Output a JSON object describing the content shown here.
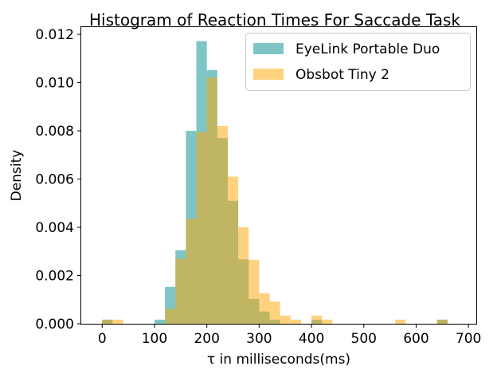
{
  "chart_data": {
    "type": "histogram",
    "title": "Histogram of Reaction Times For Saccade Task",
    "xlabel": "τ in milliseconds(ms)",
    "ylabel": "Density",
    "xlim": [
      -40,
      715
    ],
    "ylim": [
      0,
      0.0123
    ],
    "xticks": [
      "0",
      "100",
      "200",
      "300",
      "400",
      "500",
      "600",
      "700"
    ],
    "yticks": [
      "0.000",
      "0.002",
      "0.004",
      "0.006",
      "0.008",
      "0.010",
      "0.012"
    ],
    "legend_position": "top-right",
    "grid": false,
    "series": [
      {
        "name": "EyeLink Portable Duo",
        "color": "#008b8b",
        "opacity": 0.5,
        "bins": [
          {
            "x0": 0,
            "x1": 20,
            "density": 0.00017
          },
          {
            "x0": 100,
            "x1": 120,
            "density": 0.00017
          },
          {
            "x0": 120,
            "x1": 140,
            "density": 0.00153
          },
          {
            "x0": 140,
            "x1": 160,
            "density": 0.00305
          },
          {
            "x0": 160,
            "x1": 180,
            "density": 0.008
          },
          {
            "x0": 180,
            "x1": 200,
            "density": 0.01172
          },
          {
            "x0": 200,
            "x1": 220,
            "density": 0.01052
          },
          {
            "x0": 220,
            "x1": 240,
            "density": 0.0077
          },
          {
            "x0": 240,
            "x1": 260,
            "density": 0.0051
          },
          {
            "x0": 260,
            "x1": 280,
            "density": 0.00267
          },
          {
            "x0": 280,
            "x1": 300,
            "density": 0.00103
          },
          {
            "x0": 300,
            "x1": 320,
            "density": 0.00051
          },
          {
            "x0": 320,
            "x1": 340,
            "density": 0.00017
          },
          {
            "x0": 400,
            "x1": 420,
            "density": 0.00017
          },
          {
            "x0": 640,
            "x1": 660,
            "density": 0.00017
          }
        ]
      },
      {
        "name": "Obsbot Tiny 2",
        "color": "#ffa500",
        "opacity": 0.5,
        "bins": [
          {
            "x0": 0,
            "x1": 20,
            "density": 0.00017
          },
          {
            "x0": 20,
            "x1": 40,
            "density": 0.00017
          },
          {
            "x0": 120,
            "x1": 140,
            "density": 0.00062
          },
          {
            "x0": 140,
            "x1": 160,
            "density": 0.0027
          },
          {
            "x0": 160,
            "x1": 180,
            "density": 0.00435
          },
          {
            "x0": 180,
            "x1": 200,
            "density": 0.00795
          },
          {
            "x0": 200,
            "x1": 220,
            "density": 0.0102
          },
          {
            "x0": 220,
            "x1": 240,
            "density": 0.0082
          },
          {
            "x0": 240,
            "x1": 260,
            "density": 0.0061
          },
          {
            "x0": 260,
            "x1": 280,
            "density": 0.004
          },
          {
            "x0": 280,
            "x1": 300,
            "density": 0.00265
          },
          {
            "x0": 300,
            "x1": 320,
            "density": 0.00127
          },
          {
            "x0": 320,
            "x1": 340,
            "density": 0.00092
          },
          {
            "x0": 340,
            "x1": 360,
            "density": 0.00034
          },
          {
            "x0": 360,
            "x1": 380,
            "density": 0.00017
          },
          {
            "x0": 400,
            "x1": 420,
            "density": 0.00034
          },
          {
            "x0": 420,
            "x1": 440,
            "density": 0.00017
          },
          {
            "x0": 560,
            "x1": 580,
            "density": 0.00017
          },
          {
            "x0": 640,
            "x1": 660,
            "density": 0.00017
          }
        ]
      }
    ]
  }
}
